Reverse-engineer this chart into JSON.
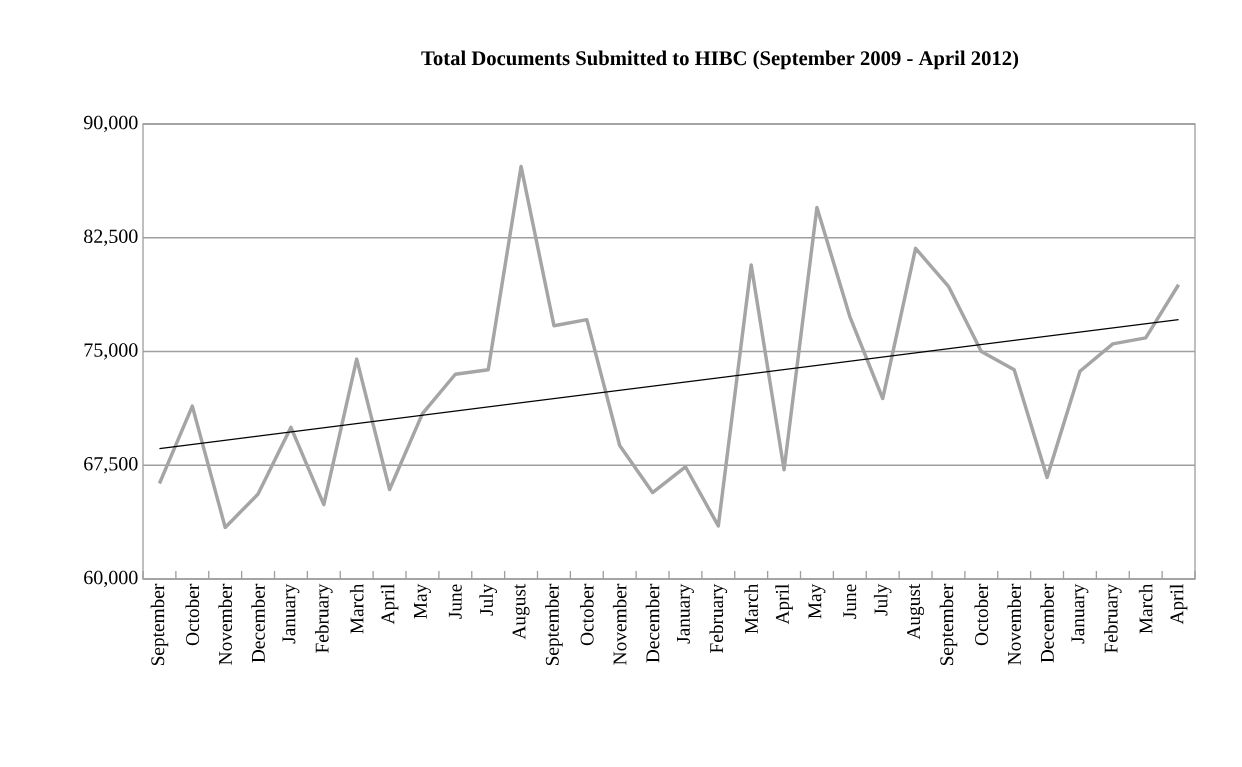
{
  "chart_data": {
    "type": "line",
    "title": "Total Documents Submitted to HIBC (September 2009 - April 2012)",
    "categories": [
      "September",
      "October",
      "November",
      "December",
      "January",
      "February",
      "March",
      "April",
      "May",
      "June",
      "July",
      "August",
      "September",
      "October",
      "November",
      "December",
      "January",
      "February",
      "March",
      "April",
      "May",
      "June",
      "July",
      "August",
      "September",
      "October",
      "November",
      "December",
      "January",
      "February",
      "March",
      "April"
    ],
    "series": [
      {
        "color": "#a5a5a5",
        "values": [
          66300,
          71400,
          63400,
          65600,
          70000,
          64900,
          74500,
          65900,
          70900,
          73500,
          73800,
          87200,
          76700,
          77100,
          68800,
          65700,
          67400,
          63500,
          80700,
          67200,
          84500,
          77300,
          71900,
          81800,
          79300,
          75000,
          73800,
          66700,
          73700,
          75500,
          75900,
          79400
        ]
      },
      {
        "type": "line",
        "color": "#000000",
        "values": [
          68600,
          null,
          null,
          null,
          null,
          null,
          null,
          null,
          null,
          null,
          null,
          null,
          null,
          null,
          null,
          null,
          null,
          null,
          null,
          null,
          null,
          null,
          null,
          null,
          null,
          null,
          null,
          null,
          null,
          null,
          null,
          77100
        ]
      }
    ],
    "ylim": [
      60000,
      90000
    ],
    "yticks": [
      {
        "value": 60000,
        "label": "60,000"
      },
      {
        "value": 67500,
        "label": "67,500"
      },
      {
        "value": 75000,
        "label": "75,000"
      },
      {
        "value": 82500,
        "label": "82,500"
      },
      {
        "value": 90000,
        "label": "90,000"
      }
    ],
    "grid": "y",
    "legend": false,
    "marker": "none",
    "line_style": "solid"
  }
}
